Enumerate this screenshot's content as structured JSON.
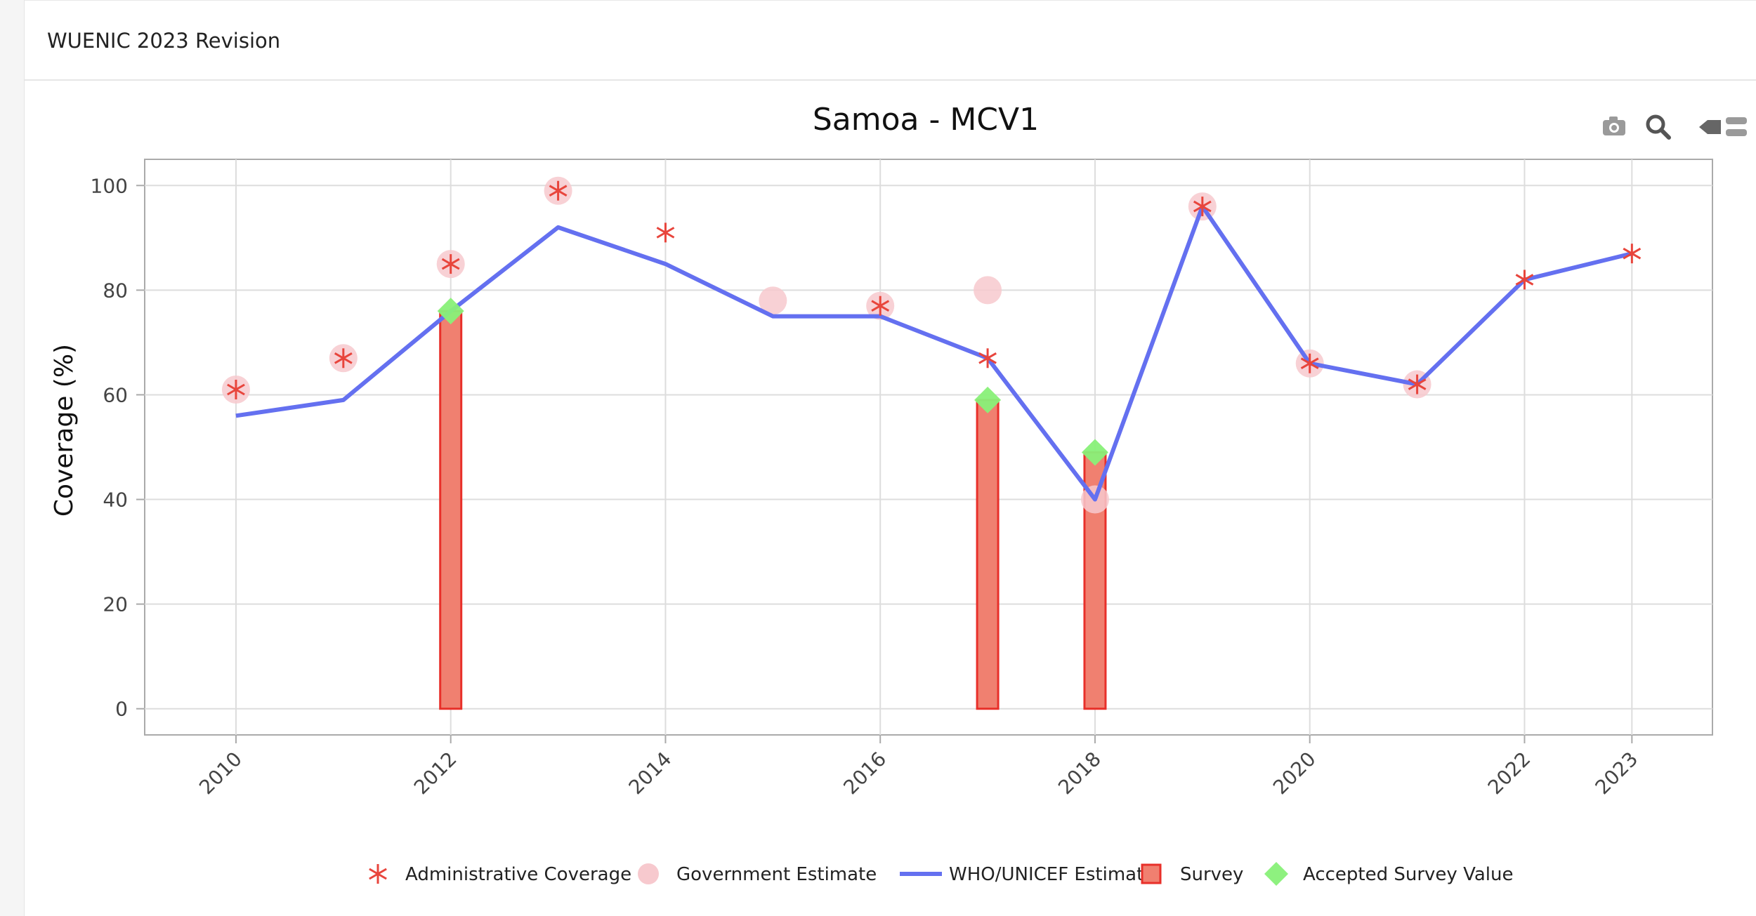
{
  "card": {
    "title": "WUENIC 2023 Revision"
  },
  "colors": {
    "admin": "#e8453c",
    "government": "#f7c9ce",
    "estimate": "#6470f0",
    "survey_fill": "#f08070",
    "survey_stroke": "#e8302a",
    "accepted": "#88f078",
    "grid": "#dddddd",
    "axis": "#aaaaaa",
    "modebar": "#9a9a9a"
  },
  "modebar": {
    "icons": [
      "camera-icon",
      "zoom-icon",
      "pan-icon",
      "toggle-icon"
    ]
  },
  "chart_data": {
    "type": "line",
    "title": "Samoa - MCV1",
    "xlabel": "",
    "ylabel": "Coverage (%)",
    "xlim": [
      2009.15,
      2023.75
    ],
    "ylim": [
      -5,
      105
    ],
    "x_ticks": [
      2010,
      2012,
      2014,
      2016,
      2018,
      2020,
      2022,
      2023
    ],
    "y_ticks": [
      0,
      20,
      40,
      60,
      80,
      100
    ],
    "grid": true,
    "legend_position": "bottom",
    "series": [
      {
        "name": "Administrative Coverage",
        "kind": "scatter-asterisk",
        "x": [
          2010,
          2011,
          2012,
          2013,
          2014,
          2016,
          2017,
          2019,
          2020,
          2021,
          2022,
          2023
        ],
        "y": [
          61,
          67,
          85,
          99,
          91,
          77,
          67,
          96,
          66,
          62,
          82,
          87
        ]
      },
      {
        "name": "Government Estimate",
        "kind": "scatter-circle",
        "x": [
          2010,
          2011,
          2012,
          2013,
          2015,
          2016,
          2017,
          2018,
          2019,
          2020,
          2021
        ],
        "y": [
          61,
          67,
          85,
          99,
          78,
          77,
          80,
          40,
          96,
          66,
          62
        ]
      },
      {
        "name": "WHO/UNICEF Estimate",
        "kind": "line",
        "x": [
          2010,
          2011,
          2012,
          2013,
          2014,
          2015,
          2016,
          2017,
          2018,
          2019,
          2020,
          2021,
          2022,
          2023
        ],
        "y": [
          56,
          59,
          76,
          92,
          85,
          75,
          75,
          67,
          40,
          96,
          66,
          62,
          82,
          87
        ]
      },
      {
        "name": "Survey",
        "kind": "bar",
        "x": [
          2012,
          2017,
          2018
        ],
        "y": [
          76,
          59,
          49
        ]
      },
      {
        "name": "Accepted Survey Value",
        "kind": "scatter-diamond",
        "x": [
          2012,
          2017,
          2018
        ],
        "y": [
          76,
          59,
          49
        ]
      }
    ]
  }
}
